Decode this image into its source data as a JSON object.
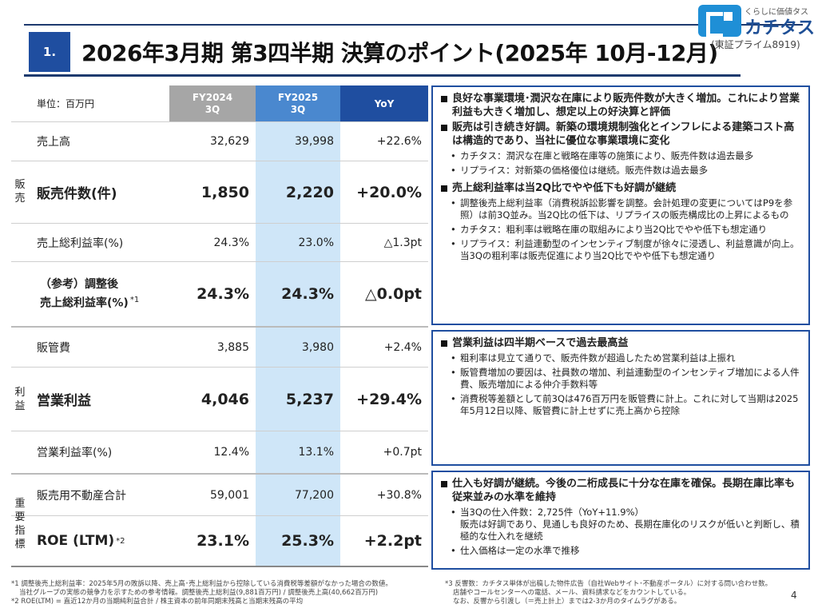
{
  "header": {
    "section_number": "1.",
    "title": "2026年3月期 第3四半期 決算のポイント(2025年 10月-12月)"
  },
  "logo": {
    "tagline": "くらしに価値タス",
    "name": "カチタス",
    "listing": "(東証プライム8919)"
  },
  "table": {
    "unit": "単位：百万円",
    "col1": "FY2024\n3Q",
    "col1_a": "FY2024",
    "col1_b": "3Q",
    "col2_a": "FY2025",
    "col2_b": "3Q",
    "col3": "YoY",
    "groups": {
      "sales": [
        "販",
        "売"
      ],
      "profit": [
        "利",
        "益"
      ],
      "kpi": [
        "重",
        "要",
        "指",
        "標"
      ]
    },
    "rows": [
      {
        "label": "売上高",
        "fy24": "32,629",
        "fy25": "39,998",
        "yoy": "+22.6%"
      },
      {
        "label": "販売件数(件)",
        "fy24": "1,850",
        "fy25": "2,220",
        "yoy": "+20.0%"
      },
      {
        "label": "売上総利益率(%)",
        "fy24": "24.3%",
        "fy25": "23.0%",
        "yoy": "△1.3pt"
      },
      {
        "label_a": "（参考）調整後",
        "label_b": "売上総利益率(%)",
        "note": "*1",
        "fy24": "24.3%",
        "fy25": "24.3%",
        "yoy": "△0.0pt"
      },
      {
        "label": "販管費",
        "fy24": "3,885",
        "fy25": "3,980",
        "yoy": "+2.4%"
      },
      {
        "label": "営業利益",
        "fy24": "4,046",
        "fy25": "5,237",
        "yoy": "+29.4%"
      },
      {
        "label": "営業利益率(%)",
        "fy24": "12.4%",
        "fy25": "13.1%",
        "yoy": "+0.7pt"
      },
      {
        "label": "販売用不動産合計",
        "fy24": "59,001",
        "fy25": "77,200",
        "yoy": "+30.8%"
      },
      {
        "label": "ROE (LTM)",
        "note": "*2",
        "fy24": "23.1%",
        "fy25": "25.3%",
        "yoy": "+2.2pt"
      }
    ]
  },
  "boxes": {
    "box1": {
      "h1": "良好な事業環境･潤沢な在庫により販売件数が大きく増加。これにより営業利益も大きく増加し、想定以上の好決算と評価",
      "h2": "販売は引き続き好調。新築の環境規制強化とインフレによる建築コスト高は構造的であり、当社に優位な事業環境に変化",
      "h2_b1": "カチタス：潤沢な在庫と戦略在庫等の施策により、販売件数は過去最多",
      "h2_b2": "リプライス：対新築の価格優位は継続。販売件数は過去最多",
      "h3": "売上総利益率は当2Q比でやや低下も好調が継続",
      "h3_b1": "調整後売上総利益率（消費税訴訟影響を調整。会計処理の変更についてはP9を参照）は前3Q並み。当2Q比の低下は、リプライスの販売構成比の上昇によるもの",
      "h3_b2": "カチタス：粗利率は戦略在庫の取組みにより当2Q比でやや低下も想定通り",
      "h3_b3": "リプライス：利益連動型のインセンティブ制度が徐々に浸透し、利益意識が向上。当3Qの粗利率は販売促進により当2Q比でやや低下も想定通り"
    },
    "box2": {
      "h1": "営業利益は四半期ベースで過去最高益",
      "b1": "粗利率は見立て通りで、販売件数が超過したため営業利益は上振れ",
      "b2": "販管費増加の要因は、社員数の増加、利益連動型のインセンティブ増加による人件費、販売増加による仲介手数料等",
      "b3": "消費税等差額として前3Qは476百万円を販管費に計上。これに対して当期は2025年5月12日以降、販管費に計上せずに売上高から控除"
    },
    "box3": {
      "h1": "仕入も好調が継続。今後の二桁成長に十分な在庫を確保。長期在庫比率も従来並みの水準を維持",
      "b1": "当3Qの仕入件数：2,725件（YoY+11.9%）",
      "b1_cont": "販売は好調であり、見通しも良好のため、長期在庫化のリスクが低いと判断し、積極的な仕入れを継続",
      "b2": "仕入価格は一定の水準で推移"
    }
  },
  "footnotes": {
    "n1_a": "*1 調整後売上総利益率：2025年5月の敗訴以降、売上高･売上総利益から控除している消費税等差額がなかった場合の数値。",
    "n1_b": "当社グループの実態の競争力を示すための参考情報。調整後売上総利益(9,881百万円) / 調整後売上高(40,662百万円)",
    "n2": "*2 ROE(LTM) = 直近12か月の当期純利益合計 / 株主資本の前年同期末残高と当期末残高の平均",
    "n3_a": "*3 反響数：カチタス単体が出稿した物件広告（自社Webサイト･不動産ポータル）に対する問い合わせ数。",
    "n3_b": "店舗やコールセンターへの電話、メール、資料請求などをカウントしている。",
    "n3_c": "なお、反響から引渡し（＝売上計上）までは2-3か月のタイムラグがある。"
  },
  "page_number": "4"
}
